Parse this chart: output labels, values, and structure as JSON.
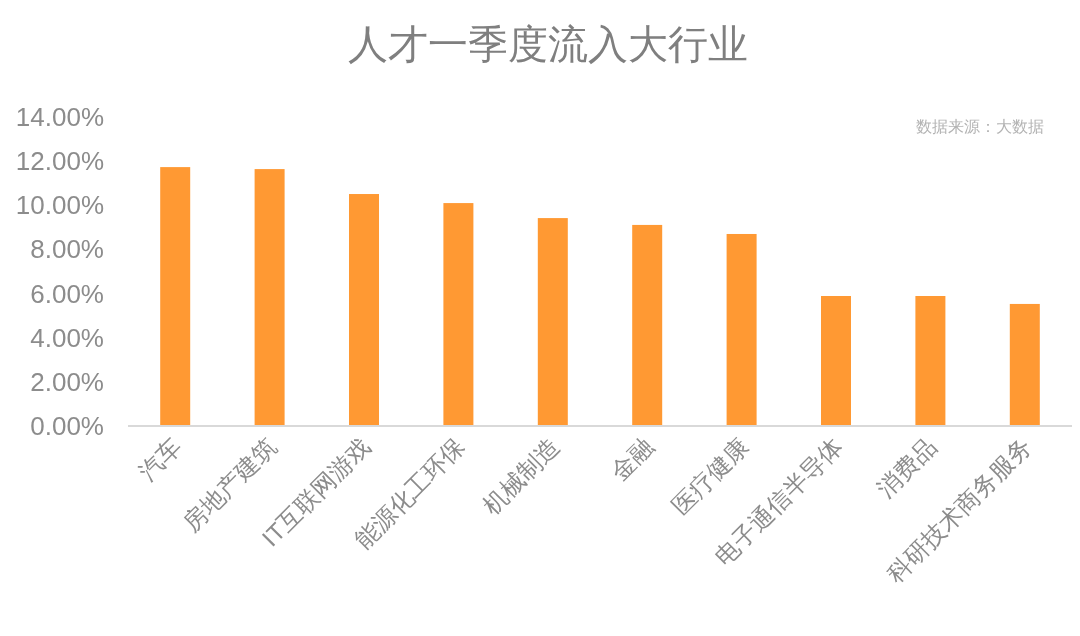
{
  "chart_data": {
    "type": "bar",
    "title": "人才一季度流入大行业",
    "categories": [
      "汽车",
      "房地产建筑",
      "IT互联网游戏",
      "能源化工环保",
      "机械制造",
      "金融",
      "医疗健康",
      "电子通信半导体",
      "消费品",
      "科研技术商务服务"
    ],
    "values": [
      11.73,
      11.64,
      10.51,
      10.1,
      9.42,
      9.11,
      8.7,
      5.89,
      5.89,
      5.53
    ],
    "color": "#ff9933",
    "ylim": [
      0,
      14
    ],
    "yticks": [
      {
        "value": 0,
        "label": "0.00%"
      },
      {
        "value": 2,
        "label": "2.00%"
      },
      {
        "value": 4,
        "label": "4.00%"
      },
      {
        "value": 6,
        "label": "6.00%"
      },
      {
        "value": 8,
        "label": "8.00%"
      },
      {
        "value": 10,
        "label": "10.00%"
      },
      {
        "value": 12,
        "label": "12.00%"
      },
      {
        "value": 14,
        "label": "14.00%"
      }
    ],
    "grid": false,
    "annotations": [
      "数据来源：大数据"
    ]
  }
}
